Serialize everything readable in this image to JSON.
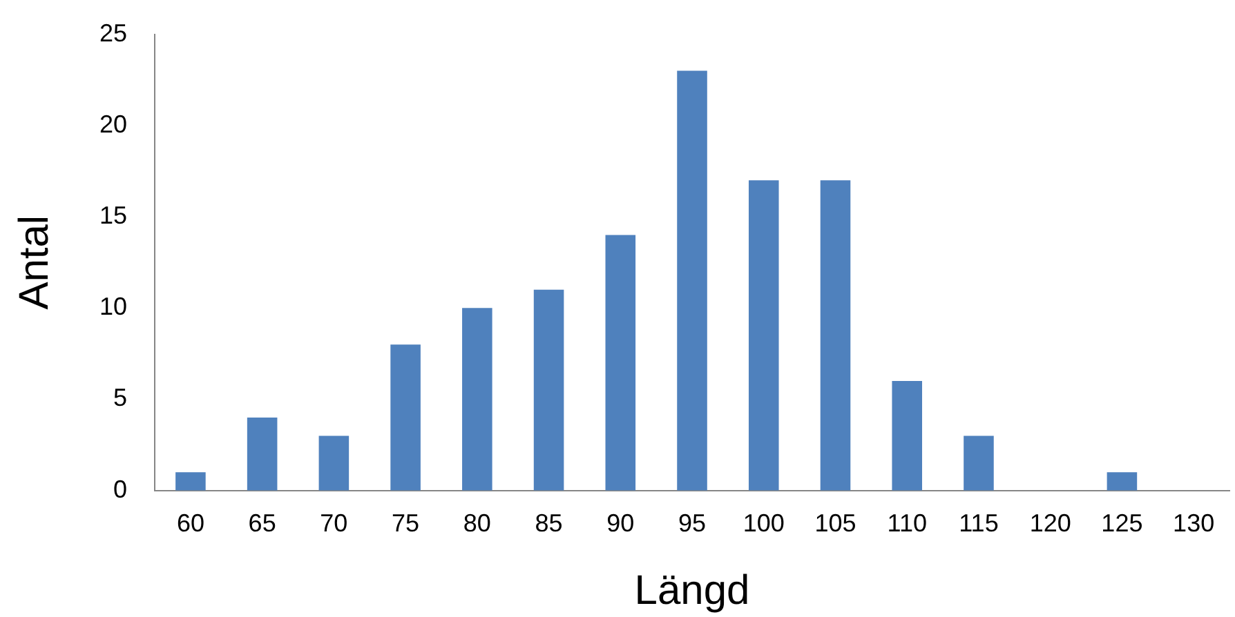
{
  "chart_data": {
    "type": "bar",
    "xlabel": "Längd",
    "ylabel": "Antal",
    "categories": [
      "60",
      "65",
      "70",
      "75",
      "80",
      "85",
      "90",
      "95",
      "100",
      "105",
      "110",
      "115",
      "120",
      "125",
      "130"
    ],
    "values": [
      1,
      4,
      3,
      8,
      10,
      11,
      14,
      23,
      17,
      17,
      6,
      3,
      0,
      1,
      0
    ],
    "color": "#4f81bd",
    "ylim": [
      0,
      25
    ],
    "yticks": [
      0,
      5,
      10,
      15,
      20,
      25
    ],
    "grid": false,
    "legend": false
  }
}
